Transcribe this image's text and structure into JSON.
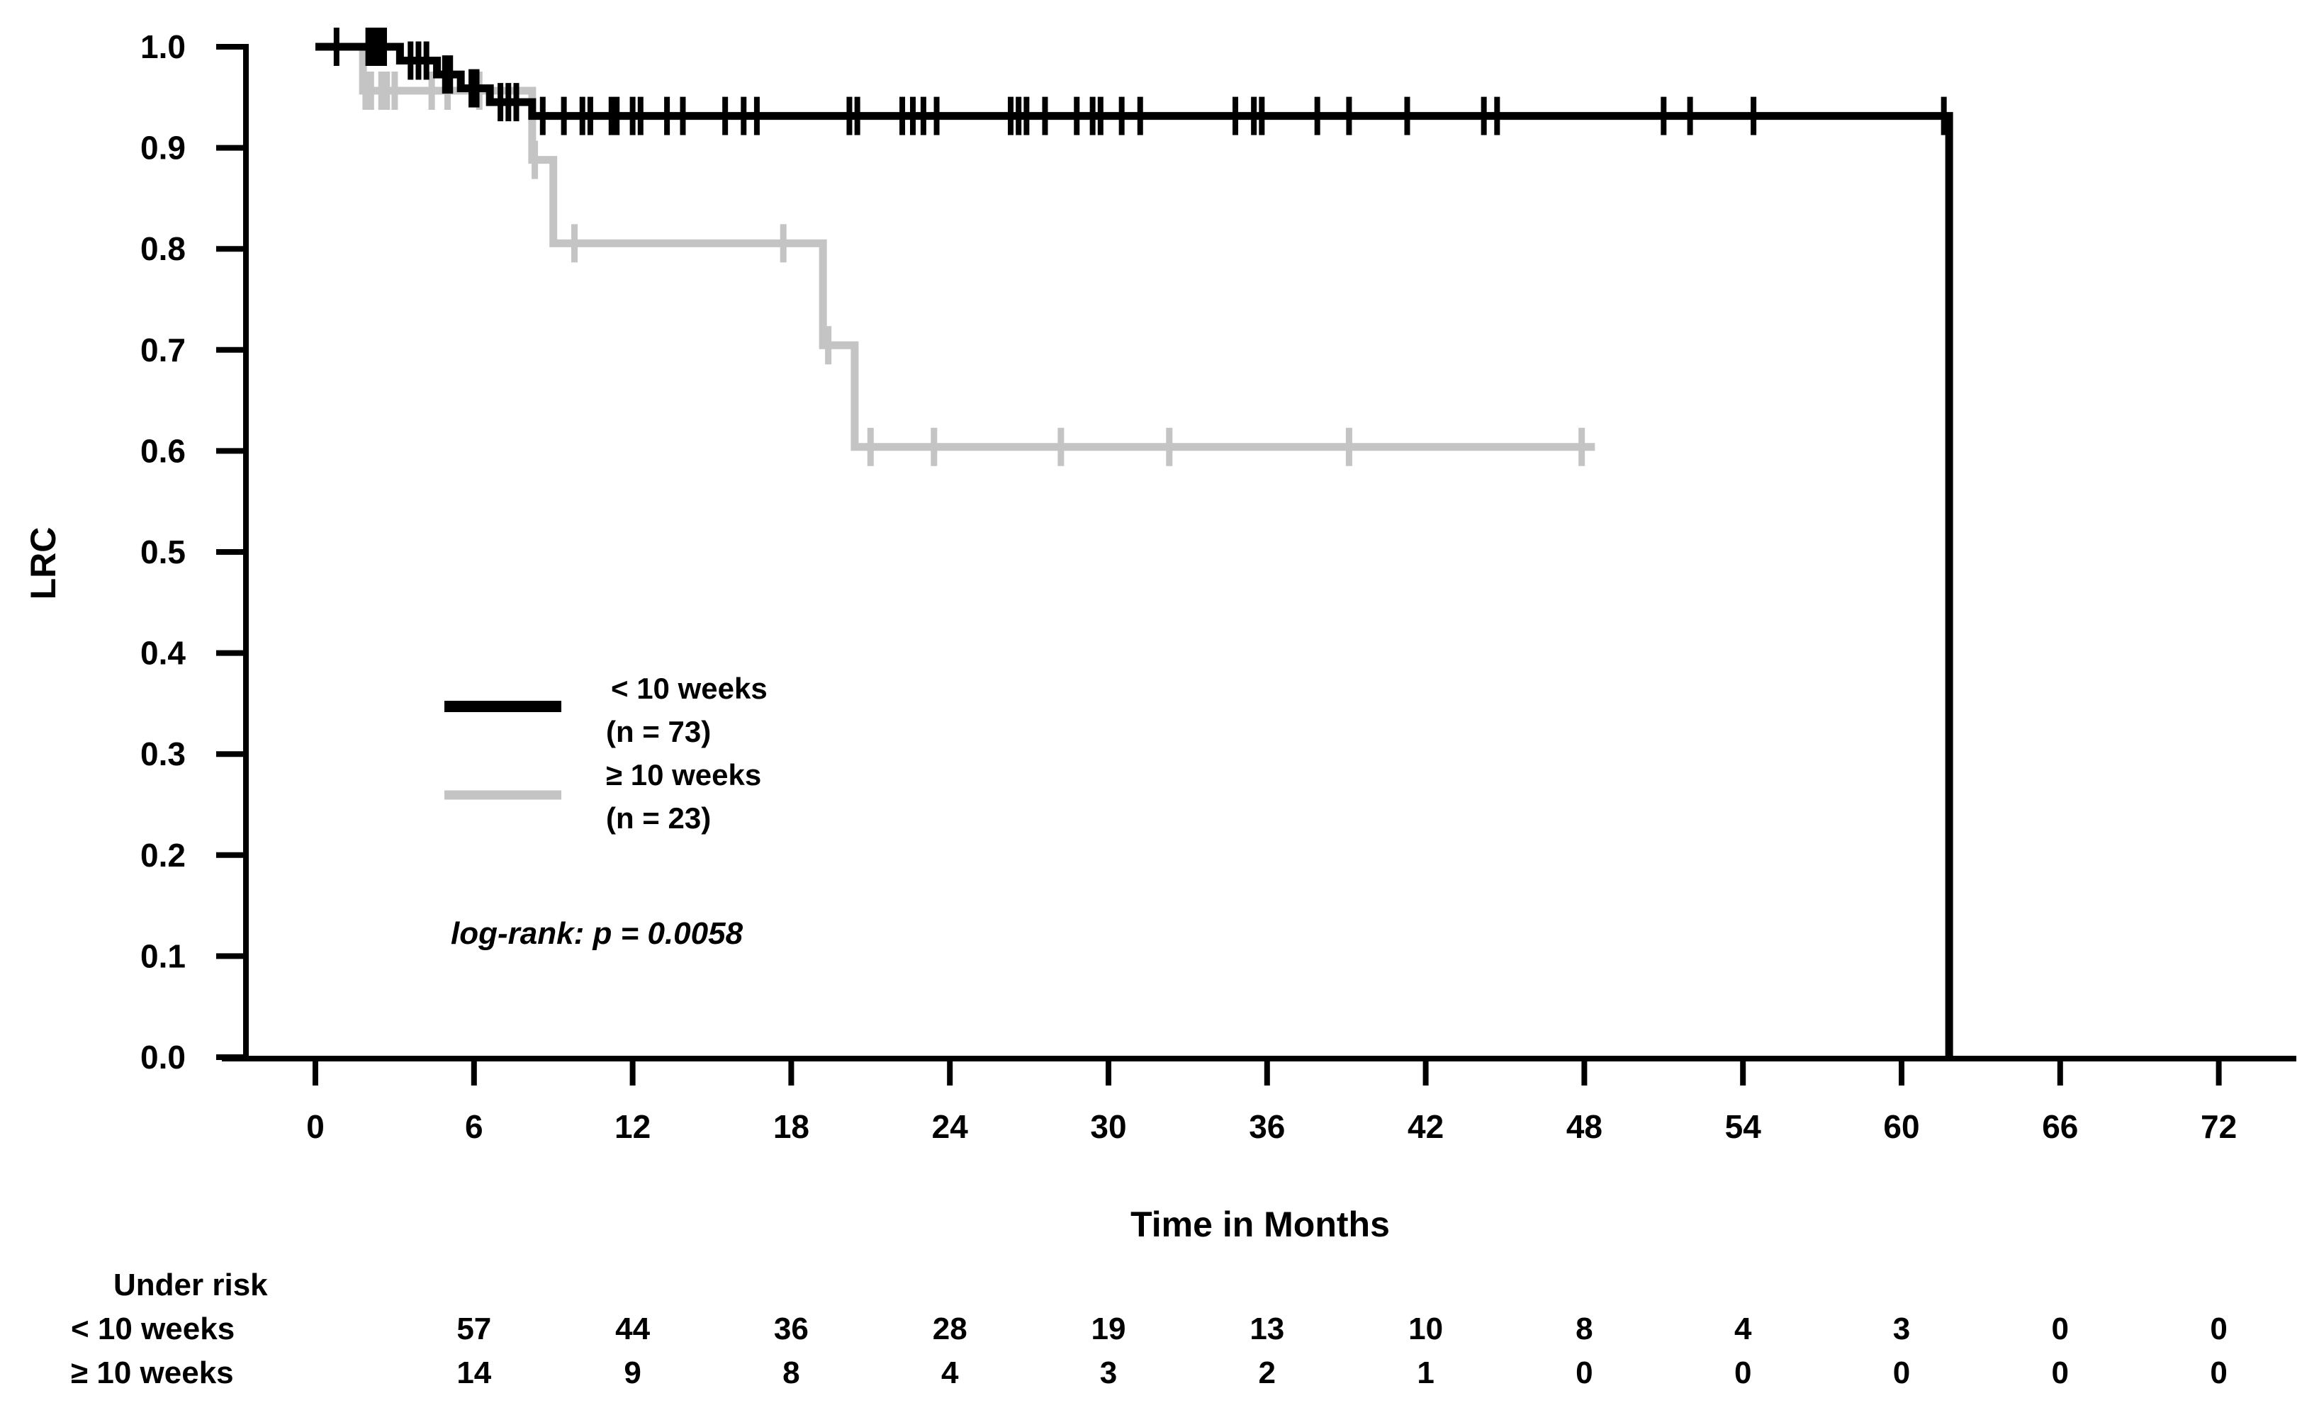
{
  "chart_data": {
    "type": "line",
    "subtype": "kaplan-meier-step",
    "title": "",
    "xlabel": "Time in Months",
    "ylabel": "LRC",
    "xlim": [
      0,
      72
    ],
    "ylim": [
      0.0,
      1.0
    ],
    "grid": false,
    "x_ticks": [
      0,
      6,
      12,
      18,
      24,
      30,
      36,
      42,
      48,
      54,
      60,
      66,
      72
    ],
    "y_ticks": [
      "0.0",
      "0.1",
      "0.2",
      "0.3",
      "0.4",
      "0.5",
      "0.6",
      "0.7",
      "0.8",
      "0.9",
      "1.0"
    ],
    "annotation": "log-rank: p = 0.0058",
    "legend_position": "center-left-inside",
    "series": [
      {
        "name": "< 10 weeks",
        "n_label": "(n = 73)",
        "color": "#000000",
        "steps": [
          [
            0,
            1.0
          ],
          [
            3.2,
            0.9863
          ],
          [
            4.6,
            0.9726
          ],
          [
            5.5,
            0.9589
          ],
          [
            6.6,
            0.9452
          ],
          [
            8.2,
            0.9315
          ]
        ],
        "end": 61.8,
        "drop_to_zero": true,
        "censors": [
          [
            0.8,
            1.0
          ],
          [
            2.0,
            1.0
          ],
          [
            2.2,
            1.0
          ],
          [
            2.4,
            1.0
          ],
          [
            2.6,
            1.0
          ],
          [
            3.6,
            0.9863
          ],
          [
            3.9,
            0.9863
          ],
          [
            4.2,
            0.9863
          ],
          [
            4.9,
            0.9726
          ],
          [
            5.1,
            0.9726
          ],
          [
            5.9,
            0.9589
          ],
          [
            6.1,
            0.9589
          ],
          [
            7.0,
            0.9452
          ],
          [
            7.3,
            0.9452
          ],
          [
            7.6,
            0.9452
          ],
          [
            8.6,
            0.9315
          ],
          [
            9.4,
            0.9315
          ],
          [
            10.1,
            0.9315
          ],
          [
            10.4,
            0.9315
          ],
          [
            11.2,
            0.9315
          ],
          [
            11.4,
            0.9315
          ],
          [
            12.0,
            0.9315
          ],
          [
            12.3,
            0.9315
          ],
          [
            13.3,
            0.9315
          ],
          [
            13.9,
            0.9315
          ],
          [
            15.5,
            0.9315
          ],
          [
            16.2,
            0.9315
          ],
          [
            16.7,
            0.9315
          ],
          [
            20.2,
            0.9315
          ],
          [
            20.5,
            0.9315
          ],
          [
            22.2,
            0.9315
          ],
          [
            22.6,
            0.9315
          ],
          [
            23.0,
            0.9315
          ],
          [
            23.5,
            0.9315
          ],
          [
            26.3,
            0.9315
          ],
          [
            26.6,
            0.9315
          ],
          [
            26.9,
            0.9315
          ],
          [
            27.6,
            0.9315
          ],
          [
            28.8,
            0.9315
          ],
          [
            29.4,
            0.9315
          ],
          [
            29.7,
            0.9315
          ],
          [
            30.5,
            0.9315
          ],
          [
            31.2,
            0.9315
          ],
          [
            34.8,
            0.9315
          ],
          [
            35.5,
            0.9315
          ],
          [
            35.8,
            0.9315
          ],
          [
            37.9,
            0.9315
          ],
          [
            39.1,
            0.9315
          ],
          [
            41.3,
            0.9315
          ],
          [
            44.2,
            0.9315
          ],
          [
            44.7,
            0.9315
          ],
          [
            51.0,
            0.9315
          ],
          [
            52.0,
            0.9315
          ],
          [
            54.4,
            0.9315
          ],
          [
            61.6,
            0.9315
          ]
        ]
      },
      {
        "name": "≥ 10 weeks",
        "n_label": "(n = 23)",
        "color": "#c4c4c4",
        "steps": [
          [
            0,
            1.0
          ],
          [
            1.8,
            0.9565
          ],
          [
            8.2,
            0.8881
          ],
          [
            9.0,
            0.8055
          ],
          [
            19.2,
            0.7046
          ],
          [
            20.4,
            0.604
          ]
        ],
        "end": 48.4,
        "drop_to_zero": false,
        "censors": [
          [
            1.9,
            0.9565
          ],
          [
            2.1,
            0.9565
          ],
          [
            2.5,
            0.9565
          ],
          [
            2.7,
            0.9565
          ],
          [
            3.0,
            0.9565
          ],
          [
            4.4,
            0.9565
          ],
          [
            5.0,
            0.9565
          ],
          [
            6.2,
            0.9565
          ],
          [
            8.3,
            0.8881
          ],
          [
            9.8,
            0.8055
          ],
          [
            17.7,
            0.8055
          ],
          [
            19.4,
            0.7046
          ],
          [
            21.0,
            0.604
          ],
          [
            23.4,
            0.604
          ],
          [
            28.2,
            0.604
          ],
          [
            32.3,
            0.604
          ],
          [
            39.1,
            0.604
          ],
          [
            47.9,
            0.604
          ]
        ]
      }
    ],
    "risk_table": {
      "title": "Under risk",
      "time_points": [
        6,
        12,
        18,
        24,
        30,
        36,
        42,
        48,
        54,
        60,
        66,
        72
      ],
      "rows": [
        {
          "label": "< 10 weeks",
          "values": [
            57,
            44,
            36,
            28,
            19,
            13,
            10,
            8,
            4,
            3,
            0,
            0
          ]
        },
        {
          "label": "≥ 10 weeks",
          "values": [
            14,
            9,
            8,
            4,
            3,
            2,
            1,
            0,
            0,
            0,
            0,
            0
          ]
        }
      ]
    }
  }
}
